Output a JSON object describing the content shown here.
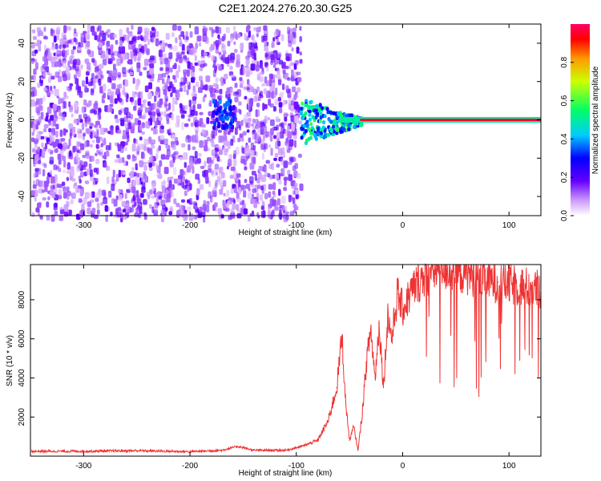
{
  "title": "C2E1.2024.276.20.30.G25",
  "chart_data": [
    {
      "type": "heatmap",
      "xlabel": "Height of straight line (km)",
      "ylabel": "Frequency (Hz)",
      "xlim": [
        -350,
        130
      ],
      "ylim": [
        -50,
        50
      ],
      "xticks": [
        -300,
        -200,
        -100,
        0,
        100
      ],
      "yticks": [
        -40,
        -20,
        0,
        20,
        40
      ],
      "colorbar": {
        "label": "Normalized spectral amplitude",
        "range": [
          0.0,
          1.0
        ],
        "ticks": [
          0.0,
          0.2,
          0.4,
          0.6,
          0.8
        ],
        "tick_labels": [
          "0.0",
          "0.2",
          "0.4",
          "0.6",
          "0.8"
        ]
      },
      "regions": [
        {
          "x_range": [
            -350,
            -97
          ],
          "freq_range": [
            -50,
            50
          ],
          "amplitude": 0.05
        },
        {
          "x_range": [
            -180,
            -160
          ],
          "freq_range": [
            -3,
            12
          ],
          "amplitude": 0.25
        },
        {
          "x_range": [
            -97,
            -40
          ],
          "freq_range": [
            -12,
            10
          ],
          "amplitude": 0.35
        },
        {
          "x_range": [
            -40,
            130
          ],
          "freq_range": [
            -1,
            1
          ],
          "amplitude": 0.95
        }
      ]
    },
    {
      "type": "line",
      "xlabel": "Height of straight line (km)",
      "ylabel": "SNR (10 * v/v)",
      "xlim": [
        -350,
        130
      ],
      "ylim": [
        0,
        9800
      ],
      "xticks": [
        -300,
        -200,
        -100,
        0,
        100
      ],
      "yticks": [
        2000,
        4000,
        6000,
        8000
      ],
      "series": [
        {
          "color": "#ee3333",
          "x": [
            -350,
            -300,
            -250,
            -200,
            -170,
            -155,
            -140,
            -110,
            -95,
            -80,
            -70,
            -62,
            -57,
            -54,
            -50,
            -46,
            -42,
            -38,
            -34,
            -30,
            -26,
            -22,
            -18,
            -14,
            -10,
            -5,
            0,
            10,
            20,
            30,
            40,
            50,
            60,
            70,
            80,
            90,
            100,
            110,
            120,
            130
          ],
          "values": [
            250,
            250,
            280,
            230,
            300,
            500,
            300,
            300,
            500,
            800,
            1800,
            3500,
            6200,
            3000,
            800,
            1500,
            300,
            2200,
            4800,
            6500,
            4000,
            6800,
            3500,
            7200,
            6000,
            8300,
            7500,
            8600,
            9200,
            9500,
            9600,
            9400,
            9400,
            9200,
            9000,
            8900,
            8800,
            8700,
            8600,
            8500
          ]
        }
      ]
    }
  ]
}
